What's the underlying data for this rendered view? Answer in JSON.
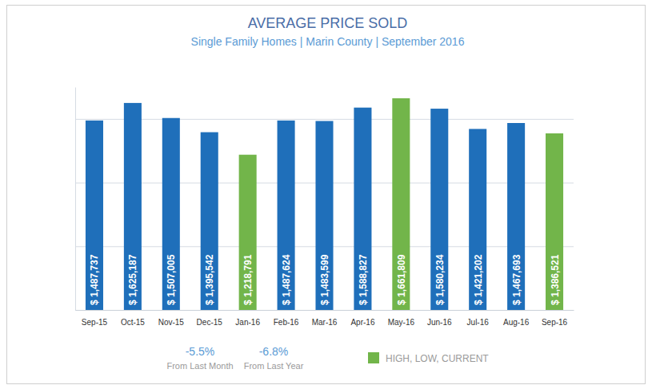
{
  "chart_data": {
    "type": "bar",
    "title": "AVERAGE PRICE SOLD",
    "subtitle": "Single Family Homes | Marin County | September 2016",
    "categories": [
      "Sep-15",
      "Oct-15",
      "Nov-15",
      "Dec-15",
      "Jan-16",
      "Feb-16",
      "Mar-16",
      "Apr-16",
      "May-16",
      "Jun-16",
      "Jul-16",
      "Aug-16",
      "Sep-16"
    ],
    "values": [
      1487737,
      1625187,
      1507005,
      1395542,
      1218791,
      1487624,
      1483599,
      1588827,
      1661809,
      1580234,
      1421202,
      1467693,
      1386521
    ],
    "value_labels": [
      "$ 1,487,737",
      "$ 1,625,187",
      "$ 1,507,005",
      "$ 1,395,542",
      "$ 1,218,791",
      "$ 1,487,624",
      "$ 1,483,599",
      "$ 1,588,827",
      "$ 1,661,809",
      "$ 1,580,234",
      "$ 1,421,202",
      "$ 1,467,693",
      "$ 1,386,521"
    ],
    "colors": [
      "#1f6fba",
      "#1f6fba",
      "#1f6fba",
      "#1f6fba",
      "#72b54a",
      "#1f6fba",
      "#1f6fba",
      "#1f6fba",
      "#72b54a",
      "#1f6fba",
      "#1f6fba",
      "#1f6fba",
      "#72b54a"
    ],
    "ylim": [
      0,
      1750000
    ],
    "yticks": [
      0,
      500000,
      1000000,
      1500000
    ],
    "grid": true,
    "data_labels": true,
    "tick_labels": "x",
    "legend": "bottom",
    "legend_entry": {
      "label": "HIGH, LOW, CURRENT",
      "color": "#72b54a"
    },
    "annotations": [
      {
        "label": "-5.5%",
        "text": "From Last Month"
      },
      {
        "label": "-6.8%",
        "text": "From Last Year"
      }
    ]
  }
}
